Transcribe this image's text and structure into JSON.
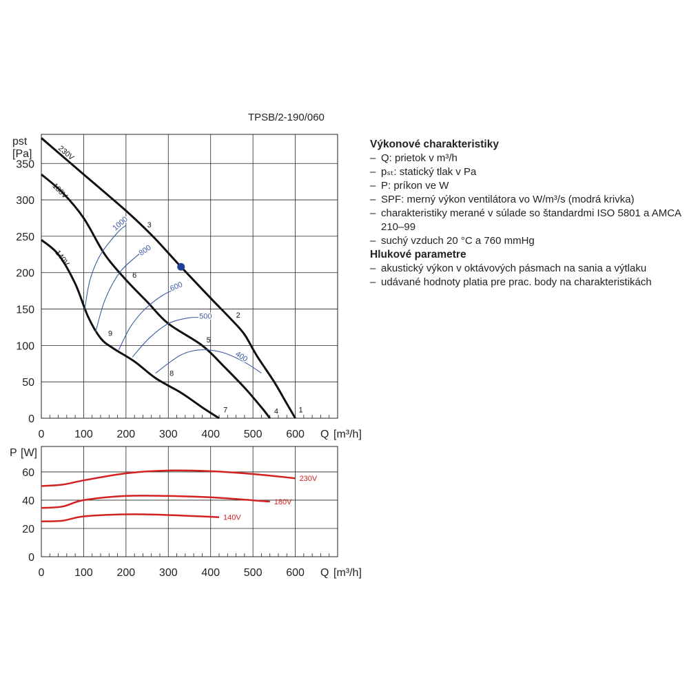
{
  "model": "TPSB/2-190/060",
  "info": {
    "performance": {
      "title": "Výkonové charakteristiky",
      "items": [
        "Q: prietok v m³/h",
        "pₛₜ: statický tlak v Pa",
        "P: príkon ve W",
        "SPF: merný výkon ventilátora vo W/m³/s (modrá krivka)",
        "charakteristiky merané v súlade so štandardmi ISO 5801 a AMCA 210–99",
        "suchý vzduch 20 °C a 760 mmHg"
      ]
    },
    "noise": {
      "title": "Hlukové parametre",
      "items": [
        "akustický výkon v oktávových pásmach na sania a výtlaku",
        "udávané hodnoty platia pre prac. body na charakteristikách"
      ]
    }
  },
  "colors": {
    "fan": "#111111",
    "spf": "#3a5ba0",
    "power": "#d42020",
    "point": "#1f3f9a",
    "grid": "#222222"
  },
  "chart_data": [
    {
      "type": "line",
      "ylabel": "pst",
      "yunit": "[Pa]",
      "xlabel": "Q",
      "xunit": "[m³/h]",
      "xlim": [
        0,
        700
      ],
      "ylim": [
        0,
        390
      ],
      "x_ticks": [
        0,
        100,
        200,
        300,
        400,
        500,
        600
      ],
      "y_ticks": [
        0,
        50,
        100,
        150,
        200,
        250,
        300,
        350
      ],
      "grid": true,
      "series": [
        {
          "name": "230V",
          "role": "fan",
          "label_at": [
            55,
            362
          ],
          "points": [
            [
              0,
              385
            ],
            [
              100,
              335
            ],
            [
              200,
              285
            ],
            [
              260,
              252
            ],
            [
              300,
              227
            ],
            [
              330,
              208
            ],
            [
              400,
              165
            ],
            [
              450,
              135
            ],
            [
              480,
              115
            ],
            [
              510,
              85
            ],
            [
              550,
              50
            ],
            [
              580,
              20
            ],
            [
              600,
              0
            ]
          ]
        },
        {
          "name": "180V",
          "role": "fan",
          "label_at": [
            40,
            310
          ],
          "points": [
            [
              0,
              335
            ],
            [
              50,
              310
            ],
            [
              100,
              275
            ],
            [
              150,
              225
            ],
            [
              200,
              190
            ],
            [
              250,
              160
            ],
            [
              300,
              130
            ],
            [
              380,
              100
            ],
            [
              430,
              72
            ],
            [
              480,
              42
            ],
            [
              520,
              15
            ],
            [
              540,
              0
            ]
          ]
        },
        {
          "name": "140V",
          "role": "fan",
          "label_at": [
            45,
            218
          ],
          "points": [
            [
              0,
              245
            ],
            [
              40,
              225
            ],
            [
              80,
              185
            ],
            [
              110,
              140
            ],
            [
              140,
              110
            ],
            [
              170,
              96
            ],
            [
              220,
              78
            ],
            [
              270,
              55
            ],
            [
              330,
              35
            ],
            [
              380,
              15
            ],
            [
              420,
              0
            ]
          ]
        },
        {
          "name": "1000",
          "role": "spf",
          "label_at": [
            190,
            265
          ],
          "points": [
            [
              102,
              148
            ],
            [
              115,
              190
            ],
            [
              140,
              225
            ],
            [
              180,
              255
            ],
            [
              200,
              265
            ]
          ]
        },
        {
          "name": "800",
          "role": "spf",
          "label_at": [
            248,
            228
          ],
          "points": [
            [
              128,
              118
            ],
            [
              150,
              162
            ],
            [
              185,
              200
            ],
            [
              230,
              225
            ],
            [
              255,
              235
            ]
          ]
        },
        {
          "name": "600",
          "role": "spf",
          "label_at": [
            321,
            178
          ],
          "points": [
            [
              183,
              94
            ],
            [
              210,
              125
            ],
            [
              245,
              150
            ],
            [
              290,
              170
            ],
            [
              330,
              180
            ]
          ]
        },
        {
          "name": "500",
          "role": "spf",
          "label_at": [
            388,
            137
          ],
          "points": [
            [
              215,
              84
            ],
            [
              255,
              110
            ],
            [
              300,
              130
            ],
            [
              350,
              138
            ],
            [
              390,
              138
            ]
          ]
        },
        {
          "name": "400",
          "role": "spf",
          "label_at": [
            470,
            82
          ],
          "points": [
            [
              270,
              62
            ],
            [
              330,
              87
            ],
            [
              380,
              94
            ],
            [
              430,
              90
            ],
            [
              480,
              77
            ],
            [
              520,
              62
            ]
          ]
        }
      ],
      "operating_points": [
        {
          "label": "1",
          "x": 608,
          "y": 8
        },
        {
          "label": "2",
          "x": 460,
          "y": 138
        },
        {
          "label": "3",
          "x": 250,
          "y": 262
        },
        {
          "label": "4",
          "x": 550,
          "y": 6
        },
        {
          "label": "5",
          "x": 390,
          "y": 104
        },
        {
          "label": "6",
          "x": 215,
          "y": 193
        },
        {
          "label": "7",
          "x": 430,
          "y": 8
        },
        {
          "label": "8",
          "x": 303,
          "y": 58
        },
        {
          "label": "9",
          "x": 158,
          "y": 113
        }
      ],
      "highlight_point": {
        "x": 330,
        "y": 208
      }
    },
    {
      "type": "line",
      "ylabel": "P",
      "yunit": "[W]",
      "xlabel": "Q",
      "xunit": "[m³/h]",
      "xlim": [
        0,
        700
      ],
      "ylim": [
        0,
        78
      ],
      "x_ticks": [
        0,
        100,
        200,
        300,
        400,
        500,
        600
      ],
      "y_ticks": [
        0,
        20,
        40,
        60
      ],
      "grid": true,
      "series": [
        {
          "name": "230V",
          "values": [
            [
              0,
              50
            ],
            [
              50,
              51
            ],
            [
              100,
              54
            ],
            [
              200,
              59
            ],
            [
              300,
              61
            ],
            [
              400,
              60.5
            ],
            [
              500,
              58.5
            ],
            [
              600,
              55.5
            ]
          ]
        },
        {
          "name": "180V",
          "values": [
            [
              0,
              34.5
            ],
            [
              50,
              35.5
            ],
            [
              100,
              40
            ],
            [
              200,
              43
            ],
            [
              300,
              43
            ],
            [
              400,
              42
            ],
            [
              540,
              39
            ]
          ]
        },
        {
          "name": "140V",
          "values": [
            [
              0,
              25
            ],
            [
              50,
              25.5
            ],
            [
              100,
              28.5
            ],
            [
              200,
              30
            ],
            [
              300,
              29.5
            ],
            [
              420,
              28
            ]
          ]
        }
      ]
    }
  ]
}
